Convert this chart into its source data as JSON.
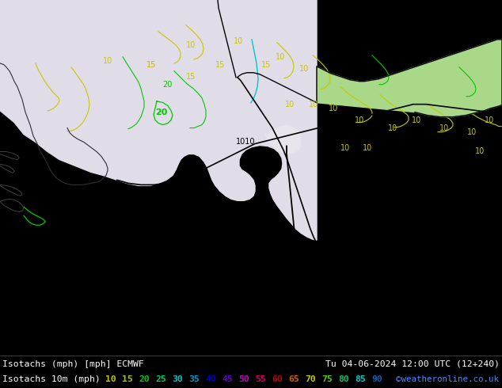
{
  "title_left": "Isotachs (mph) [mph] ECMWF",
  "title_right": "Tu 04-06-2024 12:00 UTC (12+240)",
  "subtitle_left": "Isotachs 10m (mph)",
  "copyright": "©weatheronline.co.uk",
  "map_bg": "#b4e696",
  "sea_bg": "#d8e8c8",
  "land_green": "#b4e696",
  "low_wind_bg": "#e0e0e8",
  "legend_values": [
    "10",
    "15",
    "20",
    "25",
    "30",
    "35",
    "40",
    "45",
    "50",
    "55",
    "60",
    "65",
    "70",
    "75",
    "80",
    "85",
    "90"
  ],
  "legend_colors": [
    "#c8c800",
    "#a0c800",
    "#00c800",
    "#00c864",
    "#00c8c8",
    "#0064c8",
    "#0000c8",
    "#6400c8",
    "#c800c8",
    "#c80064",
    "#c80000",
    "#c86400",
    "#c8c800",
    "#64c800",
    "#00c864",
    "#00c8c8",
    "#0064c8"
  ],
  "dpi": 100,
  "figsize": [
    6.34,
    4.9
  ]
}
